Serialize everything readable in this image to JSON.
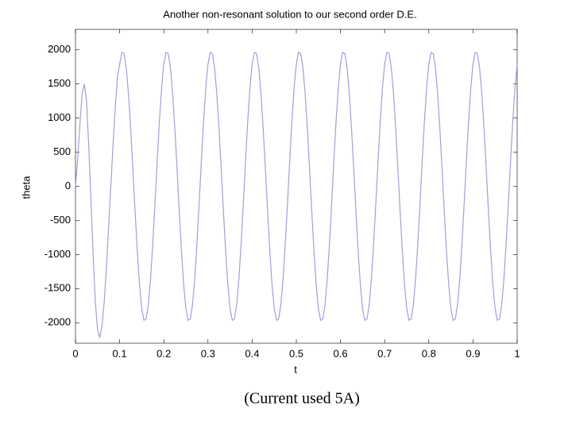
{
  "chart_data": {
    "type": "line",
    "title": "Another non-resonant solution to our second order D.E.",
    "x_label": "t",
    "y_label": "theta",
    "xlim": [
      0,
      1
    ],
    "ylim": [
      -2300,
      2300
    ],
    "xticks": [
      0,
      0.1,
      0.2,
      0.3,
      0.4,
      0.5,
      0.6,
      0.7,
      0.8,
      0.9,
      1
    ],
    "yticks": [
      -2000,
      -1500,
      -1000,
      -500,
      0,
      500,
      1000,
      1500,
      2000
    ],
    "color": "#a0a0d8",
    "x": [
      0,
      0.005,
      0.01,
      0.015,
      0.02,
      0.025,
      0.03,
      0.035,
      0.04,
      0.045,
      0.05,
      0.055,
      0.06,
      0.065,
      0.07,
      0.075,
      0.08,
      0.085,
      0.09,
      0.095,
      0.1,
      0.105,
      0.11,
      0.115,
      0.12,
      0.125,
      0.13,
      0.135,
      0.14,
      0.145,
      0.15,
      0.155,
      0.16,
      0.165,
      0.17,
      0.175,
      0.18,
      0.185,
      0.19,
      0.195,
      0.2,
      0.205,
      0.21,
      0.215,
      0.22,
      0.225,
      0.23,
      0.235,
      0.24,
      0.245,
      0.25,
      0.255,
      0.26,
      0.265,
      0.27,
      0.275,
      0.28,
      0.285,
      0.29,
      0.295,
      0.3,
      0.305,
      0.31,
      0.315,
      0.32,
      0.325,
      0.33,
      0.335,
      0.34,
      0.345,
      0.35,
      0.355,
      0.36,
      0.365,
      0.37,
      0.375,
      0.38,
      0.385,
      0.39,
      0.395,
      0.4,
      0.405,
      0.41,
      0.415,
      0.42,
      0.425,
      0.43,
      0.435,
      0.44,
      0.445,
      0.45,
      0.455,
      0.46,
      0.465,
      0.47,
      0.475,
      0.48,
      0.485,
      0.49,
      0.495,
      0.5,
      0.505,
      0.51,
      0.515,
      0.52,
      0.525,
      0.53,
      0.535,
      0.54,
      0.545,
      0.55,
      0.555,
      0.56,
      0.565,
      0.57,
      0.575,
      0.58,
      0.585,
      0.59,
      0.595,
      0.6,
      0.605,
      0.61,
      0.615,
      0.62,
      0.625,
      0.63,
      0.635,
      0.64,
      0.645,
      0.65,
      0.655,
      0.66,
      0.665,
      0.67,
      0.675,
      0.68,
      0.685,
      0.69,
      0.695,
      0.7,
      0.705,
      0.71,
      0.715,
      0.72,
      0.725,
      0.73,
      0.735,
      0.74,
      0.745,
      0.75,
      0.755,
      0.76,
      0.765,
      0.77,
      0.775,
      0.78,
      0.785,
      0.79,
      0.795,
      0.8,
      0.805,
      0.81,
      0.815,
      0.82,
      0.825,
      0.83,
      0.835,
      0.84,
      0.845,
      0.85,
      0.855,
      0.86,
      0.865,
      0.87,
      0.875,
      0.88,
      0.885,
      0.89,
      0.895,
      0.9,
      0.905,
      0.91,
      0.915,
      0.92,
      0.925,
      0.93,
      0.935,
      0.94,
      0.945,
      0.95,
      0.955,
      0.96,
      0.965,
      0.97,
      0.975,
      0.98,
      0.985,
      0.99,
      0.995,
      1
    ],
    "values": [
      0,
      400,
      900,
      1350,
      1500,
      1250,
      600,
      -200,
      -1000,
      -1700,
      -2100,
      -2220,
      -2050,
      -1700,
      -1200,
      -600,
      0,
      600,
      1150,
      1600,
      1792,
      1964,
      1945,
      1734,
      1356,
      843,
      248,
      -371,
      -954,
      -1443,
      -1792,
      -1964,
      -1945,
      -1734,
      -1356,
      -843,
      -248,
      371,
      954,
      1443,
      1792,
      1964,
      1945,
      1734,
      1356,
      843,
      248,
      -371,
      -954,
      -1443,
      -1792,
      -1964,
      -1945,
      -1734,
      -1356,
      -843,
      -248,
      371,
      954,
      1443,
      1792,
      1964,
      1945,
      1734,
      1356,
      843,
      248,
      -371,
      -954,
      -1443,
      -1792,
      -1964,
      -1945,
      -1734,
      -1356,
      -843,
      -248,
      371,
      954,
      1443,
      1792,
      1964,
      1945,
      1734,
      1356,
      843,
      248,
      -371,
      -954,
      -1443,
      -1792,
      -1964,
      -1945,
      -1734,
      -1356,
      -843,
      -248,
      371,
      954,
      1443,
      1792,
      1964,
      1945,
      1734,
      1356,
      843,
      248,
      -371,
      -954,
      -1443,
      -1792,
      -1964,
      -1945,
      -1734,
      -1356,
      -843,
      -248,
      371,
      954,
      1443,
      1792,
      1964,
      1945,
      1734,
      1356,
      843,
      248,
      -371,
      -954,
      -1443,
      -1792,
      -1964,
      -1945,
      -1734,
      -1356,
      -843,
      -248,
      371,
      954,
      1443,
      1792,
      1964,
      1945,
      1734,
      1356,
      843,
      248,
      -371,
      -954,
      -1443,
      -1792,
      -1964,
      -1945,
      -1734,
      -1356,
      -843,
      -248,
      371,
      954,
      1443,
      1792,
      1964,
      1945,
      1734,
      1356,
      843,
      248,
      -371,
      -954,
      -1443,
      -1792,
      -1964,
      -1945,
      -1734,
      -1356,
      -843,
      -248,
      371,
      954,
      1443,
      1792,
      1964,
      1945,
      1734,
      1356,
      843,
      248,
      -371,
      -954,
      -1443,
      -1792,
      -1964,
      -1945,
      -1734,
      -1356,
      -843,
      -248,
      371,
      954,
      1443,
      1792
    ]
  },
  "caption": "(Current used 5A)"
}
